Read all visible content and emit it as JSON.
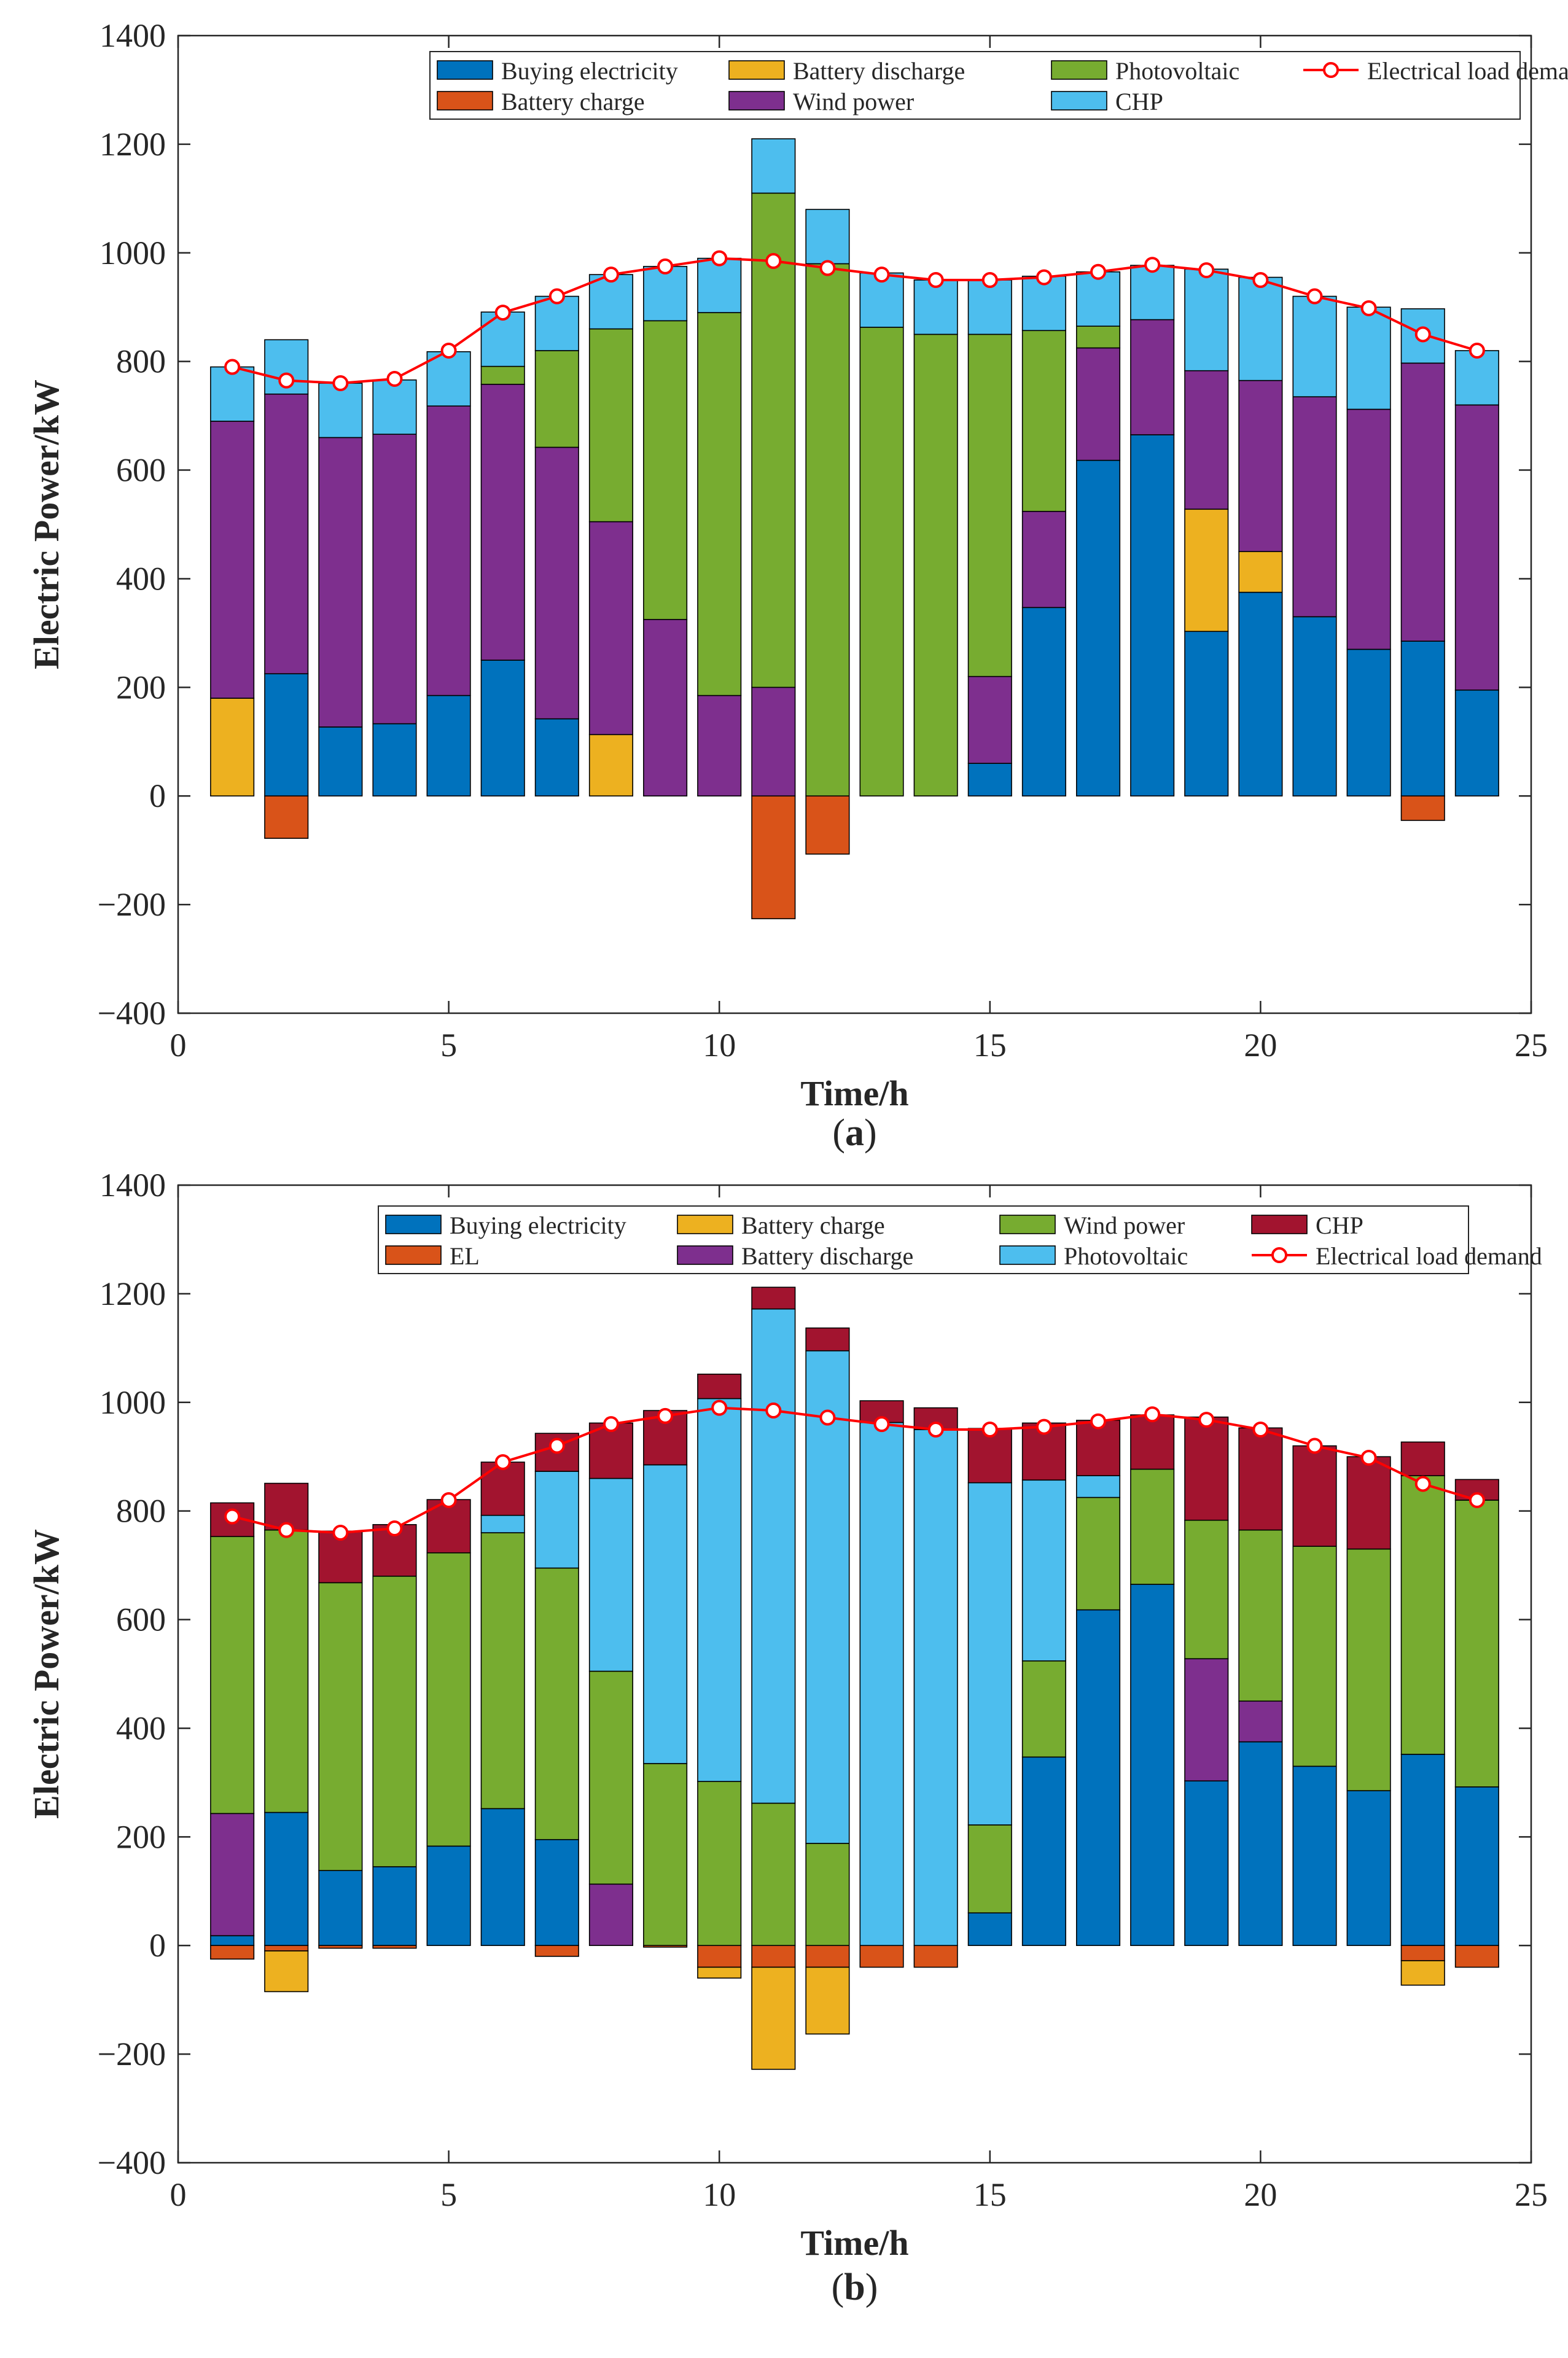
{
  "chart_data": [
    {
      "type": "bar",
      "stacked": true,
      "panel_label": "(a)",
      "panel_letter": "a",
      "xlabel": "Time/h",
      "ylabel": "Electric Power/kW",
      "xlim": [
        0,
        25
      ],
      "ylim": [
        -400,
        1400
      ],
      "xticks": [
        "0",
        "5",
        "10",
        "15",
        "20",
        "25"
      ],
      "yticks": [
        "1400",
        "1200",
        "1000",
        "800",
        "600",
        "400",
        "200",
        "0",
        "−200",
        "−400"
      ],
      "x": [
        1,
        2,
        3,
        4,
        5,
        6,
        7,
        8,
        9,
        10,
        11,
        12,
        13,
        14,
        15,
        16,
        17,
        18,
        19,
        20,
        21,
        22,
        23,
        24
      ],
      "series": [
        {
          "name": "Buying electricity",
          "color": "#0072BD",
          "values": [
            0,
            225,
            127,
            133,
            185,
            250,
            142,
            0,
            0,
            0,
            0,
            0,
            0,
            0,
            60,
            347,
            618,
            665,
            303,
            375,
            330,
            270,
            285,
            195
          ]
        },
        {
          "name": "Battery charge",
          "color": "#D95319",
          "values": [
            0,
            -78,
            0,
            0,
            0,
            0,
            0,
            0,
            0,
            0,
            -226,
            -107,
            0,
            0,
            0,
            0,
            0,
            0,
            0,
            0,
            0,
            0,
            -45,
            0
          ]
        },
        {
          "name": "Battery discharge",
          "color": "#EDB120",
          "values": [
            180,
            0,
            0,
            0,
            0,
            0,
            0,
            113,
            0,
            0,
            0,
            0,
            0,
            0,
            0,
            0,
            0,
            0,
            225,
            75,
            0,
            0,
            0,
            0
          ]
        },
        {
          "name": "Wind power",
          "color": "#7E2F8E",
          "values": [
            510,
            515,
            533,
            533,
            533,
            508,
            500,
            392,
            325,
            185,
            200,
            0,
            0,
            0,
            160,
            177,
            207,
            212,
            255,
            315,
            405,
            442,
            512,
            525
          ]
        },
        {
          "name": "Photovoltaic",
          "color": "#77AC30",
          "values": [
            0,
            0,
            0,
            0,
            0,
            33,
            178,
            355,
            550,
            705,
            910,
            980,
            863,
            850,
            630,
            333,
            40,
            0,
            0,
            0,
            0,
            0,
            0,
            0
          ]
        },
        {
          "name": "CHP",
          "color": "#4DBEEE",
          "values": [
            100,
            100,
            100,
            100,
            100,
            100,
            100,
            100,
            100,
            100,
            100,
            100,
            100,
            100,
            100,
            100,
            100,
            100,
            187,
            190,
            185,
            188,
            100,
            100
          ]
        }
      ],
      "line": {
        "name": "Electrical load demand",
        "color": "#FF0000",
        "values": [
          790,
          765,
          760,
          768,
          820,
          890,
          920,
          960,
          975,
          990,
          985,
          972,
          960,
          950,
          950,
          955,
          965,
          978,
          968,
          950,
          920,
          898,
          850,
          820
        ]
      },
      "legend": {
        "placement": "top-right",
        "columns": 4,
        "order": [
          "Buying electricity",
          "Battery discharge",
          "Photovoltaic",
          "Electrical load demand",
          "Battery charge",
          "Wind power",
          "CHP"
        ]
      }
    },
    {
      "type": "bar",
      "stacked": true,
      "panel_label": "(b)",
      "panel_letter": "b",
      "xlabel": "Time/h",
      "ylabel": "Electric Power/kW",
      "xlim": [
        0,
        25
      ],
      "ylim": [
        -400,
        1400
      ],
      "xticks": [
        "0",
        "5",
        "10",
        "15",
        "20",
        "25"
      ],
      "yticks": [
        "1400",
        "1200",
        "1000",
        "800",
        "600",
        "400",
        "200",
        "0",
        "−200",
        "−400"
      ],
      "x": [
        1,
        2,
        3,
        4,
        5,
        6,
        7,
        8,
        9,
        10,
        11,
        12,
        13,
        14,
        15,
        16,
        17,
        18,
        19,
        20,
        21,
        22,
        23,
        24
      ],
      "series": [
        {
          "name": "Buying electricity",
          "color": "#0072BD",
          "values": [
            18,
            245,
            138,
            145,
            183,
            252,
            195,
            0,
            0,
            0,
            0,
            0,
            0,
            0,
            60,
            347,
            618,
            665,
            303,
            375,
            330,
            285,
            352,
            292
          ]
        },
        {
          "name": "EL",
          "color": "#D95319",
          "values": [
            -25,
            -10,
            -5,
            -5,
            0,
            0,
            -20,
            0,
            -3,
            -40,
            -40,
            -40,
            -40,
            -40,
            0,
            0,
            0,
            0,
            0,
            0,
            0,
            0,
            -28,
            -40
          ]
        },
        {
          "name": "Battery charge",
          "color": "#EDB120",
          "values": [
            0,
            -75,
            0,
            0,
            0,
            0,
            0,
            0,
            0,
            -20,
            -188,
            -123,
            0,
            0,
            0,
            0,
            0,
            0,
            0,
            0,
            0,
            0,
            -45,
            0
          ]
        },
        {
          "name": "Battery discharge",
          "color": "#7E2F8E",
          "values": [
            225,
            0,
            0,
            0,
            0,
            0,
            0,
            113,
            0,
            0,
            0,
            0,
            0,
            0,
            0,
            0,
            0,
            0,
            225,
            75,
            0,
            0,
            0,
            0
          ]
        },
        {
          "name": "Wind power",
          "color": "#77AC30",
          "values": [
            510,
            520,
            530,
            535,
            540,
            508,
            500,
            392,
            335,
            302,
            262,
            188,
            0,
            0,
            162,
            177,
            207,
            212,
            255,
            315,
            405,
            445,
            513,
            528
          ]
        },
        {
          "name": "Photovoltaic",
          "color": "#4DBEEE",
          "values": [
            0,
            0,
            0,
            0,
            0,
            32,
            178,
            355,
            550,
            705,
            910,
            907,
            963,
            950,
            630,
            333,
            40,
            0,
            0,
            0,
            0,
            0,
            0,
            0
          ]
        },
        {
          "name": "CHP",
          "color": "#A2142F",
          "values": [
            62,
            86,
            95,
            95,
            98,
            98,
            70,
            102,
            100,
            45,
            40,
            42,
            40,
            40,
            100,
            105,
            102,
            100,
            190,
            188,
            185,
            170,
            62,
            38
          ]
        }
      ],
      "line": {
        "name": "Electrical load demand",
        "color": "#FF0000",
        "values": [
          790,
          765,
          760,
          768,
          820,
          890,
          920,
          960,
          975,
          990,
          985,
          972,
          960,
          950,
          950,
          955,
          965,
          978,
          968,
          950,
          920,
          898,
          850,
          820
        ]
      },
      "legend": {
        "placement": "top-right",
        "columns": 4,
        "order": [
          "Buying electricity",
          "Battery charge",
          "Wind power",
          "CHP",
          "EL",
          "Battery discharge",
          "Photovoltaic",
          "Electrical load demand"
        ]
      }
    }
  ]
}
